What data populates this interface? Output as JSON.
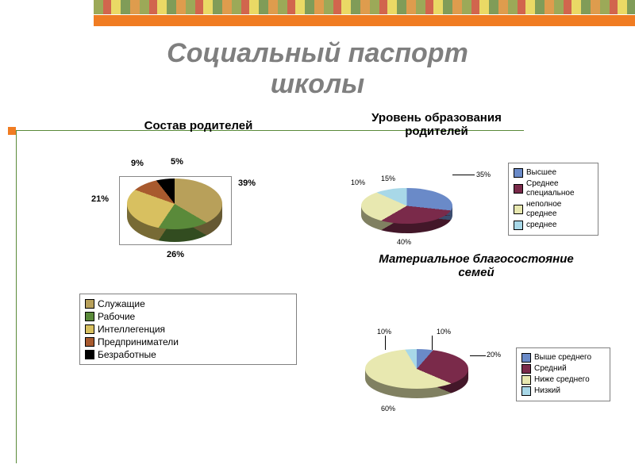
{
  "page": {
    "title_line1": "Социальный паспорт",
    "title_line2": "школы",
    "title_color": "#7f7f7f",
    "title_fontsize": 34,
    "accent_color": "#f07c22",
    "rule_color": "#5a8a3a",
    "background_color": "#ffffff"
  },
  "chart1": {
    "type": "pie",
    "title": "Состав родителей",
    "title_fontsize": 15,
    "labels": [
      "Служащие",
      "Рабочие",
      "Интеллегенция",
      "Предприниматели",
      "Безработные"
    ],
    "values": [
      39,
      26,
      21,
      9,
      5
    ],
    "value_labels": [
      "39%",
      "26%",
      "21%",
      "9%",
      "5%"
    ],
    "colors": [
      "#b8a05a",
      "#5a8a3a",
      "#d8c060",
      "#a85a2e",
      "#000000"
    ],
    "label_fontsize": 11,
    "plot_border_color": "#888888",
    "depth": 16,
    "legend": {
      "cols": 2,
      "items": [
        "Служащие",
        "Рабочие",
        "Интеллегенция",
        "Предприниматели",
        "Безработные"
      ],
      "swatch_colors": [
        "#b8a05a",
        "#5a8a3a",
        "#d8c060",
        "#a85a2e",
        "#000000"
      ],
      "border_color": "#808080",
      "fontsize": 12
    }
  },
  "chart2": {
    "type": "pie",
    "title": "Уровень образования родителей",
    "title_fontsize": 15,
    "labels": [
      "Высшее",
      "Среднее специальное",
      "неполное среднее",
      "среднее"
    ],
    "values": [
      35,
      40,
      15,
      10
    ],
    "value_labels": [
      "35%",
      "40%",
      "15%",
      "10%"
    ],
    "colors": [
      "#6a8ac8",
      "#7a2a4a",
      "#e8e8b0",
      "#a8d8e8"
    ],
    "label_fontsize": 9,
    "depth": 12,
    "legend": {
      "items": [
        "Высшее",
        "Среднее специальное",
        "неполное среднее",
        "среднее"
      ],
      "swatch_colors": [
        "#6a8ac8",
        "#7a2a4a",
        "#e8e8b0",
        "#a8d8e8"
      ],
      "fontsize": 10
    }
  },
  "chart3": {
    "type": "pie",
    "title": "Материальное благосостояние семей",
    "title_fontsize": 15,
    "labels": [
      "Выше среднего",
      "Средний",
      "Ниже среднего",
      "Низкий"
    ],
    "values": [
      10,
      20,
      60,
      10
    ],
    "value_labels": [
      "10%",
      "20%",
      "60%",
      "10%"
    ],
    "colors": [
      "#6a8ac8",
      "#7a2a4a",
      "#e8e8b0",
      "#a8d8e8"
    ],
    "label_fontsize": 9,
    "depth": 12,
    "legend": {
      "items": [
        "Выше среднего",
        "Средний",
        "Ниже среднего",
        "Низкий"
      ],
      "swatch_colors": [
        "#6a8ac8",
        "#7a2a4a",
        "#e8e8b0",
        "#a8d8e8"
      ],
      "fontsize": 10
    }
  }
}
